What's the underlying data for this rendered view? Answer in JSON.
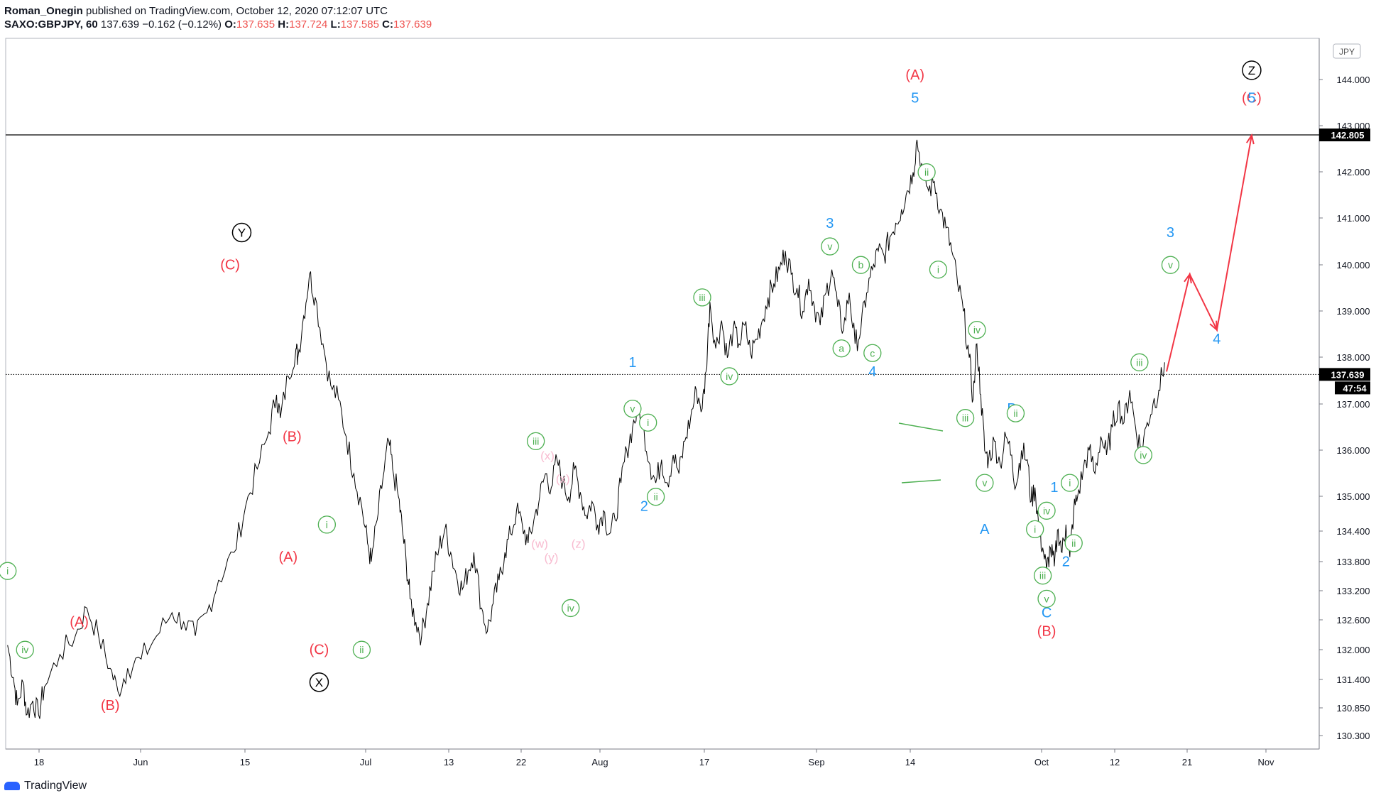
{
  "header": {
    "author": "Roman_Onegin",
    "published": "published on TradingView.com, October 12, 2020 07:12:07 UTC",
    "symbol": "SAXO:GBPJPY, 60",
    "last": "137.639",
    "change": "−0.162 (−0.12%)",
    "o_label": "O:",
    "o": "137.635",
    "h_label": "H:",
    "h": "137.724",
    "l_label": "L:",
    "l": "137.585",
    "c_label": "C:",
    "c": "137.639"
  },
  "footer": {
    "brand": "TradingView"
  },
  "chart_data": {
    "type": "line",
    "currency": "JPY",
    "y_ticks": [
      "144.000",
      "143.000",
      "142.000",
      "141.000",
      "140.000",
      "139.000",
      "138.000",
      "137.000",
      "136.000",
      "135.000",
      "134.400",
      "133.800",
      "133.200",
      "132.600",
      "132.000",
      "131.400",
      "130.850",
      "130.300"
    ],
    "x_ticks": [
      "18",
      "Jun",
      "15",
      "Jul",
      "13",
      "22",
      "Aug",
      "17",
      "Sep",
      "14",
      "Oct",
      "12",
      "21",
      "Nov"
    ],
    "resistance_label": "142.805",
    "last_price_label": "137.639",
    "countdown_label": "47:54",
    "colors": {
      "red": "#f23645",
      "blue": "#2196f3",
      "green": "#4caf50",
      "pink": "#f8bbd0",
      "black": "#000000"
    },
    "price_path": [
      [
        2020.05,
        131.8
      ],
      [
        2020.2,
        131.1
      ],
      [
        2020.3,
        130.5
      ],
      [
        2020.45,
        131.0
      ],
      [
        2020.55,
        130.3
      ],
      [
        2020.7,
        130.6
      ],
      [
        2020.85,
        130.3
      ],
      [
        2021,
        130.9
      ],
      [
        2021.4,
        131.6
      ],
      [
        2021.8,
        132.0
      ],
      [
        2022.1,
        132.6
      ],
      [
        2022.4,
        132.0
      ],
      [
        2022.7,
        131.3
      ],
      [
        2022.9,
        130.8
      ],
      [
        2023.15,
        131.3
      ],
      [
        2023.5,
        131.5
      ],
      [
        2023.9,
        132.0
      ],
      [
        2024.3,
        132.5
      ],
      [
        2024.6,
        132.3
      ],
      [
        2024.9,
        132.0
      ],
      [
        2025.2,
        132.5
      ],
      [
        2025.5,
        133.2
      ],
      [
        2025.9,
        133.8
      ],
      [
        2026.2,
        134.8
      ],
      [
        2026.5,
        135.6
      ],
      [
        2026.8,
        136.4
      ],
      [
        2027.0,
        137.2
      ],
      [
        2027.1,
        136.7
      ],
      [
        2027.3,
        137.6
      ],
      [
        2027.5,
        138.2
      ],
      [
        2027.55,
        138.0
      ],
      [
        2027.7,
        138.9
      ],
      [
        2027.85,
        139.8
      ],
      [
        2028.0,
        139.3
      ],
      [
        2028.2,
        138.3
      ],
      [
        2028.4,
        137.4
      ],
      [
        2028.6,
        137.1
      ],
      [
        2028.8,
        136.3
      ],
      [
        2029.0,
        135.5
      ],
      [
        2029.2,
        134.8
      ],
      [
        2029.35,
        134.0
      ],
      [
        2029.45,
        133.6
      ],
      [
        2029.6,
        134.5
      ],
      [
        2029.75,
        135.4
      ],
      [
        2029.9,
        136.2
      ],
      [
        2030.0,
        135.6
      ],
      [
        2030.15,
        135.0
      ],
      [
        2030.25,
        134.3
      ],
      [
        2030.35,
        133.6
      ],
      [
        2030.45,
        132.8
      ],
      [
        2030.6,
        132.3
      ],
      [
        2030.75,
        132.0
      ],
      [
        2030.9,
        132.7
      ],
      [
        2031.05,
        133.4
      ],
      [
        2031.2,
        133.9
      ],
      [
        2031.35,
        134.3
      ],
      [
        2031.5,
        133.8
      ],
      [
        2031.65,
        133.3
      ],
      [
        2031.8,
        133.0
      ],
      [
        2031.95,
        133.4
      ],
      [
        2032.1,
        133.8
      ],
      [
        2032.3,
        132.6
      ],
      [
        2032.45,
        132.1
      ],
      [
        2032.6,
        132.7
      ],
      [
        2032.75,
        133.2
      ],
      [
        2032.9,
        133.8
      ],
      [
        2033.05,
        134.2
      ],
      [
        2033.2,
        134.7
      ],
      [
        2033.35,
        134.4
      ],
      [
        2033.5,
        134.0
      ],
      [
        2033.65,
        134.5
      ],
      [
        2033.8,
        135.0
      ],
      [
        2033.95,
        135.5
      ],
      [
        2034.1,
        135.2
      ],
      [
        2034.25,
        135.8
      ],
      [
        2034.4,
        135.3
      ],
      [
        2034.55,
        135.0
      ],
      [
        2034.7,
        135.6
      ],
      [
        2034.85,
        135.1
      ],
      [
        2035.0,
        134.6
      ],
      [
        2035.15,
        134.9
      ],
      [
        2035.3,
        134.4
      ],
      [
        2035.45,
        134.7
      ],
      [
        2035.6,
        134.2
      ],
      [
        2035.75,
        134.5
      ],
      [
        2035.9,
        135.3
      ],
      [
        2036.05,
        136.0
      ],
      [
        2036.2,
        136.5
      ],
      [
        2036.35,
        136.9
      ],
      [
        2036.5,
        136.4
      ],
      [
        2036.65,
        135.7
      ],
      [
        2036.8,
        135.3
      ],
      [
        2036.95,
        135.8
      ],
      [
        2037.1,
        135.3
      ],
      [
        2037.25,
        135.9
      ],
      [
        2037.4,
        135.5
      ],
      [
        2037.55,
        136.2
      ],
      [
        2037.7,
        136.7
      ],
      [
        2037.85,
        137.3
      ],
      [
        2038.0,
        136.9
      ],
      [
        2038.1,
        137.7
      ],
      [
        2038.2,
        139.2
      ],
      [
        2038.35,
        138.2
      ],
      [
        2038.5,
        138.8
      ],
      [
        2038.65,
        138.0
      ],
      [
        2038.8,
        138.6
      ],
      [
        2038.95,
        138.3
      ],
      [
        2039.1,
        138.7
      ],
      [
        2039.25,
        138.1
      ],
      [
        2039.4,
        138.4
      ],
      [
        2039.55,
        138.8
      ],
      [
        2039.7,
        139.3
      ],
      [
        2039.85,
        139.6
      ],
      [
        2040.0,
        139.9
      ],
      [
        2040.15,
        140.3
      ],
      [
        2040.3,
        139.8
      ],
      [
        2040.45,
        139.5
      ],
      [
        2040.6,
        139.0
      ],
      [
        2040.75,
        139.7
      ],
      [
        2040.9,
        139.1
      ],
      [
        2041.05,
        138.7
      ],
      [
        2041.2,
        139.4
      ],
      [
        2041.35,
        139.9
      ],
      [
        2041.5,
        139.1
      ],
      [
        2041.65,
        138.6
      ],
      [
        2041.8,
        139.4
      ],
      [
        2041.95,
        138.3
      ],
      [
        2042.1,
        138.6
      ],
      [
        2042.25,
        139.4
      ],
      [
        2042.4,
        139.9
      ],
      [
        2042.55,
        140.3
      ],
      [
        2042.7,
        140.2
      ],
      [
        2042.85,
        140.6
      ],
      [
        2043.0,
        140.9
      ],
      [
        2043.15,
        141.2
      ],
      [
        2043.3,
        141.6
      ],
      [
        2043.45,
        142.0
      ],
      [
        2043.55,
        142.7
      ],
      [
        2043.7,
        142.0
      ],
      [
        2043.85,
        141.6
      ],
      [
        2044.0,
        141.8
      ],
      [
        2044.15,
        141.2
      ],
      [
        2044.3,
        140.8
      ],
      [
        2044.45,
        140.3
      ],
      [
        2044.6,
        139.6
      ],
      [
        2044.75,
        139.0
      ],
      [
        2044.9,
        138.0
      ],
      [
        2045.0,
        137.1
      ],
      [
        2045.1,
        138.3
      ],
      [
        2045.2,
        137.2
      ],
      [
        2045.3,
        136.0
      ],
      [
        2045.4,
        135.8
      ],
      [
        2045.55,
        136.2
      ],
      [
        2045.7,
        135.7
      ],
      [
        2045.85,
        136.3
      ],
      [
        2046.0,
        135.9
      ],
      [
        2046.1,
        135.2
      ],
      [
        2046.25,
        136.0
      ],
      [
        2046.4,
        135.8
      ],
      [
        2046.5,
        134.9
      ],
      [
        2046.6,
        135.2
      ],
      [
        2046.7,
        134.3
      ],
      [
        2046.8,
        133.9
      ],
      [
        2046.9,
        133.4
      ],
      [
        2047.0,
        133.9
      ],
      [
        2047.1,
        133.5
      ],
      [
        2047.2,
        134.3
      ],
      [
        2047.3,
        133.8
      ],
      [
        2047.4,
        134.4
      ],
      [
        2047.5,
        133.7
      ],
      [
        2047.6,
        134.7
      ],
      [
        2047.7,
        135.0
      ],
      [
        2047.85,
        135.6
      ],
      [
        2048.0,
        136.0
      ],
      [
        2048.15,
        135.5
      ],
      [
        2048.3,
        136.3
      ],
      [
        2048.45,
        135.9
      ],
      [
        2048.6,
        136.5
      ],
      [
        2048.75,
        137.0
      ],
      [
        2048.9,
        136.6
      ],
      [
        2049.05,
        137.3
      ],
      [
        2049.2,
        136.5
      ],
      [
        2049.35,
        136.0
      ],
      [
        2049.5,
        136.6
      ],
      [
        2049.65,
        137.0
      ],
      [
        2049.8,
        137.3
      ],
      [
        2049.95,
        137.9
      ]
    ],
    "forecast": [
      [
        2050.0,
        137.7
      ],
      [
        2050.6,
        139.8
      ],
      [
        2051.3,
        138.6
      ],
      [
        2052.2,
        142.8
      ]
    ],
    "labels_red": [
      {
        "t": "(A)",
        "x": 2021.9,
        "y": 132.2
      },
      {
        "t": "(B)",
        "x": 2022.7,
        "y": 130.4
      },
      {
        "t": "(C)",
        "x": 2025.8,
        "y": 139.9
      },
      {
        "t": "(B)",
        "x": 2027.4,
        "y": 136.2
      },
      {
        "t": "(A)",
        "x": 2027.3,
        "y": 133.6
      },
      {
        "t": "(C)",
        "x": 2028.1,
        "y": 131.6
      },
      {
        "t": "(A)",
        "x": 2043.5,
        "y": 144.0
      },
      {
        "t": "(B)",
        "x": 2046.9,
        "y": 132.0
      },
      {
        "t": "(C)",
        "x": 2052.2,
        "y": 143.5
      }
    ],
    "labels_blue": [
      {
        "t": "5",
        "x": 2043.5,
        "y": 143.5
      },
      {
        "t": "3",
        "x": 2041.3,
        "y": 140.8
      },
      {
        "t": "1",
        "x": 2036.2,
        "y": 137.8
      },
      {
        "t": "2",
        "x": 2036.5,
        "y": 134.7
      },
      {
        "t": "4",
        "x": 2042.4,
        "y": 137.6
      },
      {
        "t": "A",
        "x": 2045.3,
        "y": 134.2
      },
      {
        "t": "B",
        "x": 2046.0,
        "y": 136.8
      },
      {
        "t": "C",
        "x": 2046.9,
        "y": 132.4
      },
      {
        "t": "1",
        "x": 2047.1,
        "y": 135.1
      },
      {
        "t": "2",
        "x": 2047.4,
        "y": 133.5
      },
      {
        "t": "3",
        "x": 2050.1,
        "y": 140.6
      },
      {
        "t": "4",
        "x": 2051.3,
        "y": 138.3
      },
      {
        "t": "5",
        "x": 2052.2,
        "y": 143.5
      }
    ],
    "labels_green": [
      {
        "t": "i",
        "x": 2020.05,
        "y": 133.4
      },
      {
        "t": "iv",
        "x": 2020.5,
        "y": 131.7
      },
      {
        "t": "i",
        "x": 2028.3,
        "y": 134.4
      },
      {
        "t": "ii",
        "x": 2029.2,
        "y": 131.7
      },
      {
        "t": "iii",
        "x": 2033.7,
        "y": 136.2
      },
      {
        "t": "iv",
        "x": 2034.6,
        "y": 132.6
      },
      {
        "t": "v",
        "x": 2036.2,
        "y": 136.9
      },
      {
        "t": "i",
        "x": 2036.6,
        "y": 136.6
      },
      {
        "t": "ii",
        "x": 2036.8,
        "y": 135.0
      },
      {
        "t": "iii",
        "x": 2038.0,
        "y": 139.3
      },
      {
        "t": "iv",
        "x": 2038.7,
        "y": 137.6
      },
      {
        "t": "v",
        "x": 2041.3,
        "y": 140.4
      },
      {
        "t": "a",
        "x": 2041.6,
        "y": 138.2
      },
      {
        "t": "b",
        "x": 2042.1,
        "y": 140.0
      },
      {
        "t": "c",
        "x": 2042.4,
        "y": 138.1
      },
      {
        "t": "ii",
        "x": 2043.8,
        "y": 142.0
      },
      {
        "t": "i",
        "x": 2044.1,
        "y": 139.9
      },
      {
        "t": "iv",
        "x": 2045.1,
        "y": 138.6
      },
      {
        "t": "iii",
        "x": 2044.8,
        "y": 136.7
      },
      {
        "t": "v",
        "x": 2045.3,
        "y": 135.3
      },
      {
        "t": "ii",
        "x": 2046.1,
        "y": 136.8
      },
      {
        "t": "i",
        "x": 2046.6,
        "y": 134.3
      },
      {
        "t": "iv",
        "x": 2046.9,
        "y": 134.7
      },
      {
        "t": "iii",
        "x": 2046.8,
        "y": 133.3
      },
      {
        "t": "v",
        "x": 2046.9,
        "y": 132.8
      },
      {
        "t": "i",
        "x": 2047.5,
        "y": 135.3
      },
      {
        "t": "ii",
        "x": 2047.6,
        "y": 134.0
      },
      {
        "t": "iii",
        "x": 2049.3,
        "y": 137.9
      },
      {
        "t": "iv",
        "x": 2049.4,
        "y": 135.9
      },
      {
        "t": "v",
        "x": 2050.1,
        "y": 140.0
      }
    ],
    "labels_pink": [
      {
        "t": "(x)",
        "x": 2034.0,
        "y": 135.8
      },
      {
        "t": "(x)",
        "x": 2034.4,
        "y": 135.3
      },
      {
        "t": "(w)",
        "x": 2033.8,
        "y": 133.9
      },
      {
        "t": "(y)",
        "x": 2034.1,
        "y": 133.6
      },
      {
        "t": "(z)",
        "x": 2034.8,
        "y": 133.9
      }
    ],
    "labels_circled_black": [
      {
        "t": "Y",
        "x": 2026.1,
        "y": 140.7
      },
      {
        "t": "X",
        "x": 2028.1,
        "y": 131.0
      },
      {
        "t": "Z",
        "x": 2052.2,
        "y": 144.2
      }
    ]
  }
}
